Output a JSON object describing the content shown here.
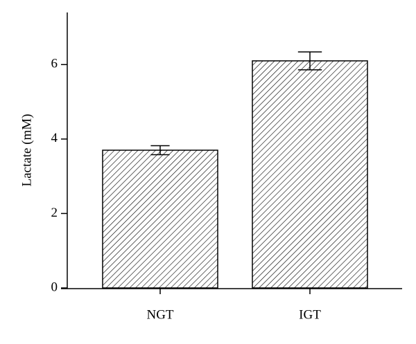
{
  "chart_data": {
    "type": "bar",
    "ylabel": "Lactate (mM)",
    "categories": [
      "NGT",
      "IGT"
    ],
    "values": [
      3.7,
      6.1
    ],
    "errors": [
      0.12,
      0.24
    ],
    "color": "#ffffff",
    "ylim": [
      0,
      7.4
    ],
    "yticks": [
      0,
      2,
      4,
      6
    ]
  }
}
